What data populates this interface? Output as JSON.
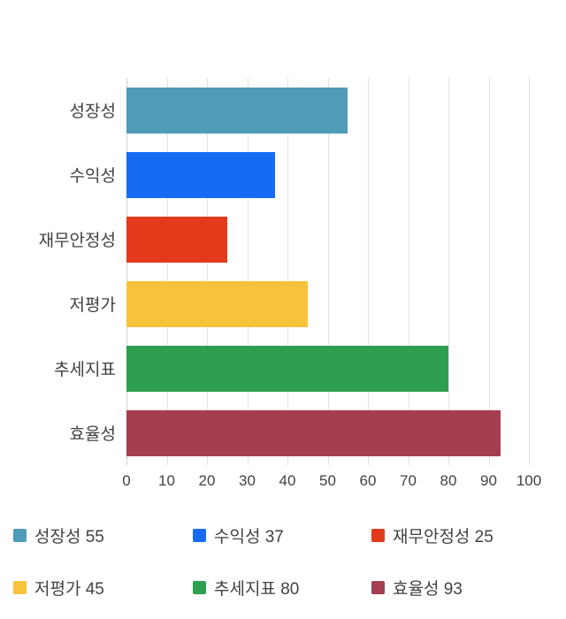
{
  "chart_data": {
    "type": "bar",
    "orientation": "horizontal",
    "title": "",
    "xlabel": "",
    "ylabel": "",
    "categories": [
      "성장성",
      "수익성",
      "재무안정성",
      "저평가",
      "추세지표",
      "효율성"
    ],
    "values": [
      55,
      37,
      25,
      45,
      80,
      93
    ],
    "colors": [
      "#4f9bb8",
      "#176bf2",
      "#e5391c",
      "#f8c33a",
      "#2e9e4f",
      "#a43d50"
    ],
    "xlim": [
      0,
      100
    ],
    "x_ticks": [
      0,
      10,
      20,
      30,
      40,
      50,
      60,
      70,
      80,
      90,
      100
    ],
    "grid": true,
    "grid_color": "#e2e2e2",
    "legend_position": "bottom",
    "legend": [
      {
        "label": "성장성 55",
        "color": "#4f9bb8"
      },
      {
        "label": "수익성 37",
        "color": "#176bf2"
      },
      {
        "label": "재무안정성 25",
        "color": "#e5391c"
      },
      {
        "label": "저평가 45",
        "color": "#f8c33a"
      },
      {
        "label": "추세지표 80",
        "color": "#2e9e4f"
      },
      {
        "label": "효율성 93",
        "color": "#a43d50"
      }
    ]
  }
}
